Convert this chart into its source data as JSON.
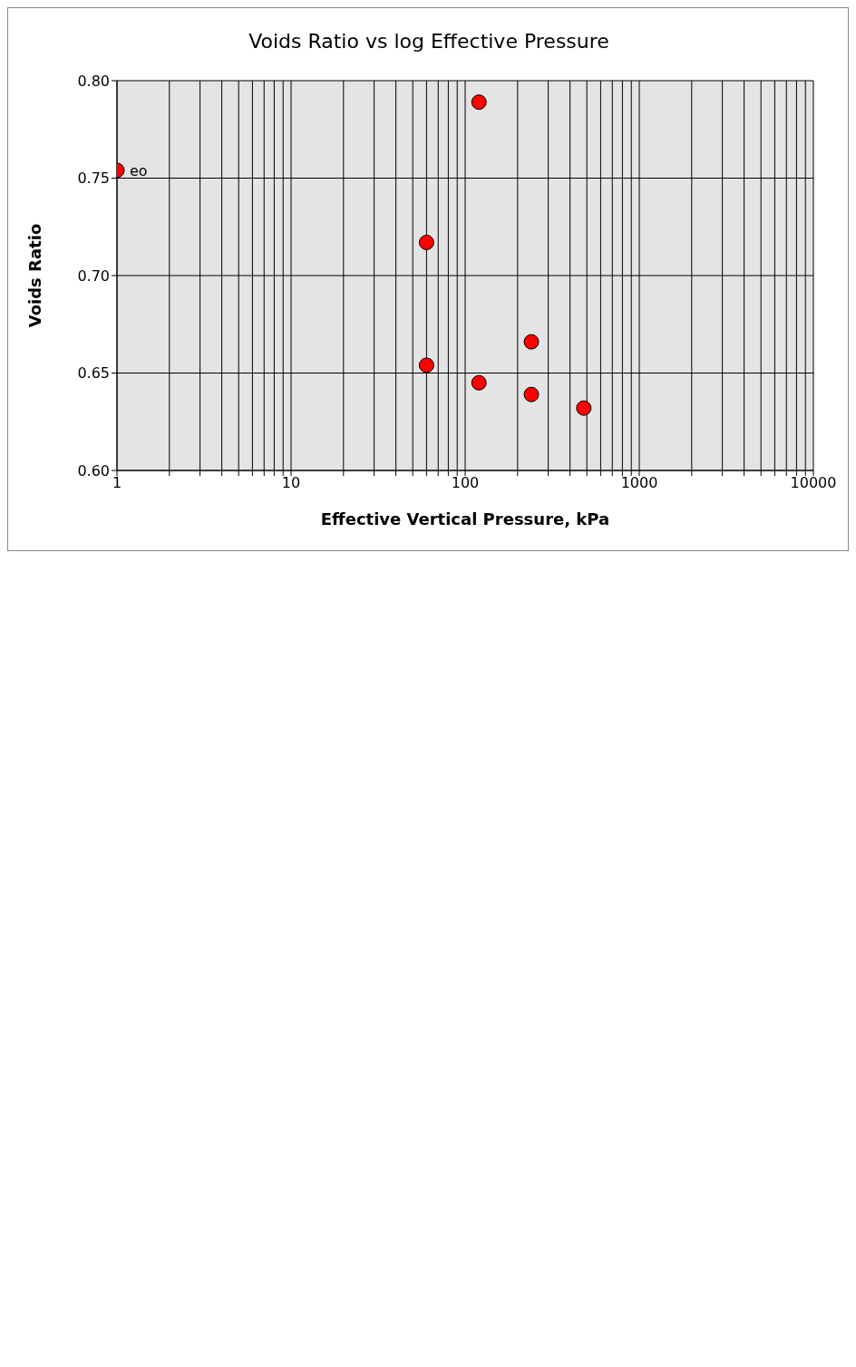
{
  "chart_data": {
    "type": "scatter",
    "title": "Voids Ratio vs log Effective Pressure",
    "xlabel": "Effective Vertical Pressure, kPa",
    "ylabel": "Voids Ratio",
    "log": "x",
    "grid": true,
    "marker": "circle",
    "color": "#ff0000",
    "x": [
      1,
      120,
      60,
      60,
      240,
      240,
      120,
      480
    ],
    "values": [
      0.754,
      0.789,
      0.717,
      0.654,
      0.666,
      0.639,
      0.645,
      0.632
    ],
    "xlim": [
      1,
      10000
    ],
    "xticks": [
      1,
      {
        "value": 2,
        "label": null
      },
      {
        "value": 3,
        "label": null
      },
      {
        "value": 4,
        "label": null
      },
      {
        "value": 5,
        "label": null
      },
      {
        "value": 6,
        "label": null
      },
      {
        "value": 7,
        "label": null
      },
      {
        "value": 8,
        "label": null
      },
      {
        "value": 9,
        "label": null
      },
      10,
      {
        "value": 20,
        "label": null
      },
      {
        "value": 30,
        "label": null
      },
      {
        "value": 40,
        "label": null
      },
      {
        "value": 50,
        "label": null
      },
      {
        "value": 60,
        "label": null
      },
      {
        "value": 70,
        "label": null
      },
      {
        "value": 80,
        "label": null
      },
      {
        "value": 90,
        "label": null
      },
      100,
      {
        "value": 200,
        "label": null
      },
      {
        "value": 300,
        "label": null
      },
      {
        "value": 400,
        "label": null
      },
      {
        "value": 500,
        "label": null
      },
      {
        "value": 600,
        "label": null
      },
      {
        "value": 700,
        "label": null
      },
      {
        "value": 800,
        "label": null
      },
      {
        "value": 900,
        "label": null
      },
      1000,
      {
        "value": 2000,
        "label": null
      },
      {
        "value": 3000,
        "label": null
      },
      {
        "value": 4000,
        "label": null
      },
      {
        "value": 5000,
        "label": null
      },
      {
        "value": 6000,
        "label": null
      },
      {
        "value": 7000,
        "label": null
      },
      {
        "value": 8000,
        "label": null
      },
      {
        "value": 9000,
        "label": null
      },
      10000
    ],
    "ylim": [
      0.6,
      0.8
    ],
    "yticks": [
      {
        "value": 0.6,
        "label": "0.60"
      },
      {
        "value": 0.65,
        "label": "0.65"
      },
      {
        "value": 0.7,
        "label": "0.70"
      },
      {
        "value": 0.75,
        "label": "0.75"
      },
      {
        "value": 0.8,
        "label": "0.80"
      }
    ],
    "annotations": [
      {
        "text": "eo",
        "x": 1,
        "y": 0.754
      }
    ]
  }
}
